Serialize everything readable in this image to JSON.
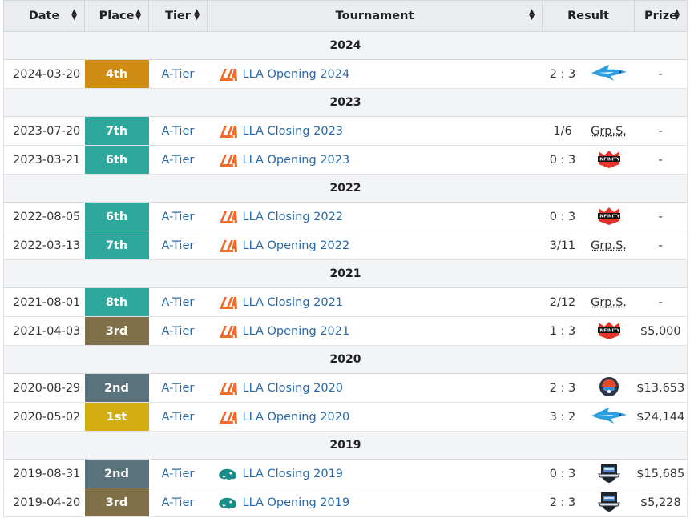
{
  "headers": {
    "date": "Date",
    "place": "Place",
    "tier": "Tier",
    "tournament": "Tournament",
    "result": "Result",
    "prize": "Prize"
  },
  "colors": {
    "link": "#2a69a8",
    "place_4th": "#d08b12",
    "place_teal": "#2ea79c",
    "place_3rd": "#80704a",
    "place_2nd": "#5a727c",
    "place_1st": "#d4ad12"
  },
  "groups": [
    {
      "year": "2024",
      "rows": [
        {
          "date": "2024-03-20",
          "place": "4th",
          "place_color": "4th",
          "tier": "A-Tier",
          "tournament_icon": "lla-logo-icon",
          "tournament": "LLA Opening 2024",
          "score": "2 : 3",
          "opponent_icon": "shark-team-icon",
          "prize": "-"
        }
      ]
    },
    {
      "year": "2023",
      "rows": [
        {
          "date": "2023-07-20",
          "place": "7th",
          "place_color": "teal",
          "tier": "A-Tier",
          "tournament_icon": "lla-logo-icon",
          "tournament": "LLA Closing 2023",
          "score": "1/6",
          "opponent_text": "Grp.S.",
          "prize": "-"
        },
        {
          "date": "2023-03-21",
          "place": "6th",
          "place_color": "teal",
          "tier": "A-Tier",
          "tournament_icon": "lla-logo-icon",
          "tournament": "LLA Opening 2023",
          "score": "0 : 3",
          "opponent_icon": "infinity-team-icon",
          "prize": "-"
        }
      ]
    },
    {
      "year": "2022",
      "rows": [
        {
          "date": "2022-08-05",
          "place": "6th",
          "place_color": "teal",
          "tier": "A-Tier",
          "tournament_icon": "lla-logo-icon",
          "tournament": "LLA Closing 2022",
          "score": "0 : 3",
          "opponent_icon": "infinity-team-icon",
          "prize": "-"
        },
        {
          "date": "2022-03-13",
          "place": "7th",
          "place_color": "teal",
          "tier": "A-Tier",
          "tournament_icon": "lla-logo-icon",
          "tournament": "LLA Opening 2022",
          "score": "3/11",
          "opponent_text": "Grp.S.",
          "prize": "-"
        }
      ]
    },
    {
      "year": "2021",
      "rows": [
        {
          "date": "2021-08-01",
          "place": "8th",
          "place_color": "teal",
          "tier": "A-Tier",
          "tournament_icon": "lla-logo-icon",
          "tournament": "LLA Closing 2021",
          "score": "2/12",
          "opponent_text": "Grp.S.",
          "prize": "-"
        },
        {
          "date": "2021-04-03",
          "place": "3rd",
          "place_color": "3rd",
          "tier": "A-Tier",
          "tournament_icon": "lla-logo-icon",
          "tournament": "LLA Opening 2021",
          "score": "1 : 3",
          "opponent_icon": "infinity-team-icon",
          "prize": "$5,000"
        }
      ]
    },
    {
      "year": "2020",
      "rows": [
        {
          "date": "2020-08-29",
          "place": "2nd",
          "place_color": "2nd",
          "tier": "A-Tier",
          "tournament_icon": "lla-logo-icon",
          "tournament": "LLA Closing 2020",
          "score": "2 : 3",
          "opponent_icon": "helmet-team-icon",
          "prize": "$13,653"
        },
        {
          "date": "2020-05-02",
          "place": "1st",
          "place_color": "1st",
          "tier": "A-Tier",
          "tournament_icon": "lla-logo-icon",
          "tournament": "LLA Opening 2020",
          "score": "3 : 2",
          "opponent_icon": "shark-team-icon",
          "prize": "$24,144"
        }
      ]
    },
    {
      "year": "2019",
      "rows": [
        {
          "date": "2019-08-31",
          "place": "2nd",
          "place_color": "2nd",
          "tier": "A-Tier",
          "tournament_icon": "lla-panther-logo-icon",
          "tournament": "LLA Closing 2019",
          "score": "0 : 3",
          "opponent_icon": "rainbow-shield-team-icon",
          "prize": "$15,685"
        },
        {
          "date": "2019-04-20",
          "place": "3rd",
          "place_color": "3rd",
          "tier": "A-Tier",
          "tournament_icon": "lla-panther-logo-icon",
          "tournament": "LLA Opening 2019",
          "score": "2 : 3",
          "opponent_icon": "rainbow-shield-team-icon",
          "prize": "$5,228"
        }
      ]
    }
  ]
}
